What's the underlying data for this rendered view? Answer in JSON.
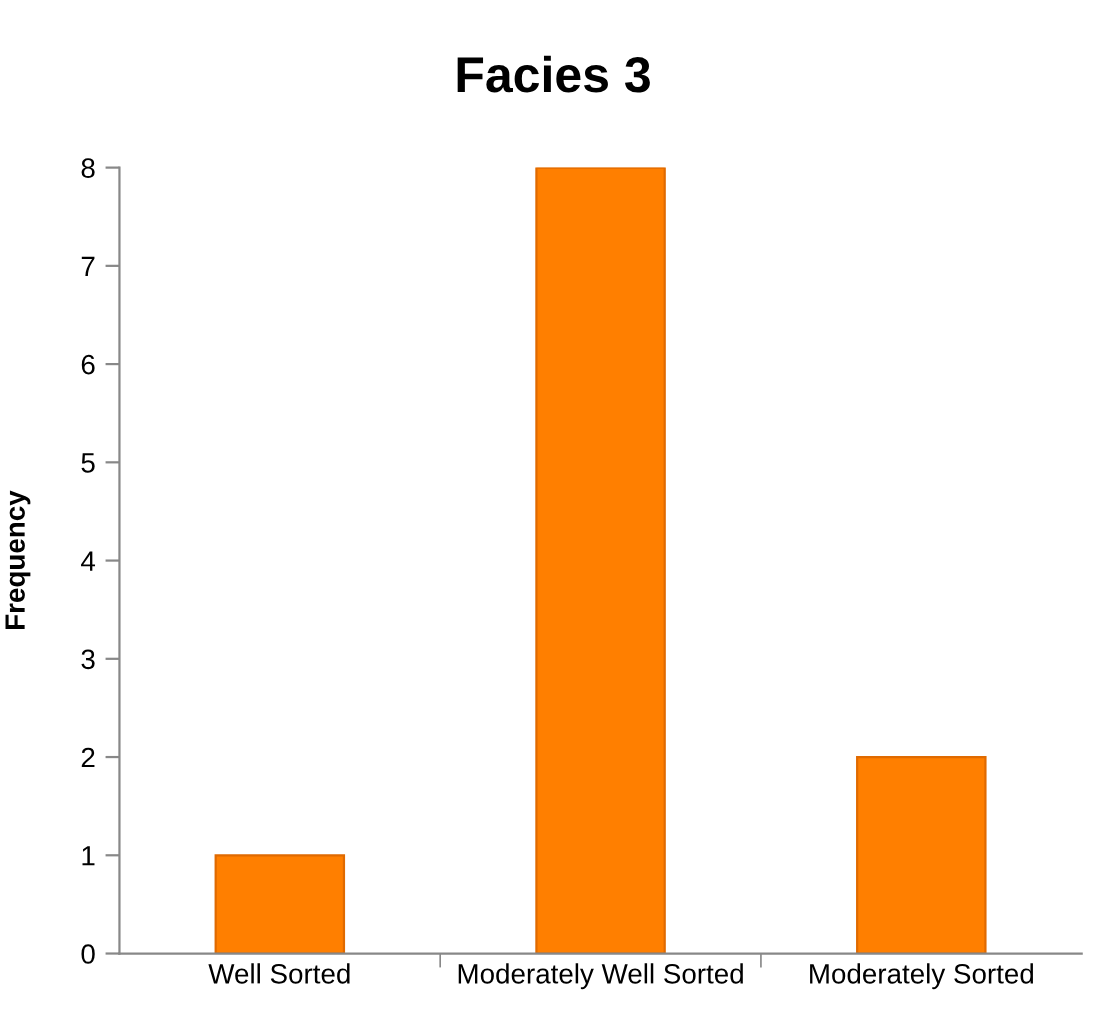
{
  "chart_data": {
    "type": "bar",
    "title": "Facies 3",
    "ylabel": "Frequency",
    "categories": [
      "Well Sorted",
      "Moderately Well Sorted",
      "Moderately Sorted"
    ],
    "values": [
      1,
      8,
      2
    ],
    "color": "#ff7f00",
    "ylim": [
      0,
      8
    ],
    "yticks": [
      0,
      1,
      2,
      3,
      4,
      5,
      6,
      7,
      8
    ],
    "grid": false
  }
}
